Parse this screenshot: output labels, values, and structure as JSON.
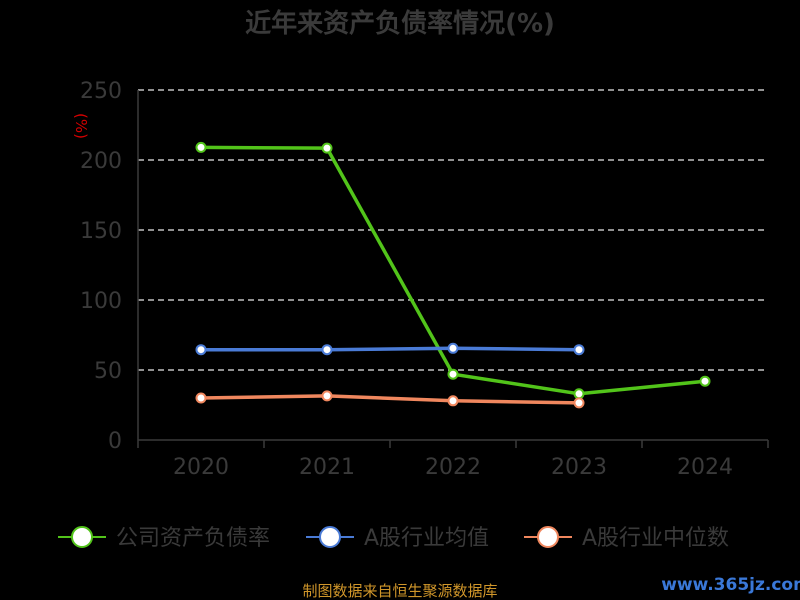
{
  "chart_data": {
    "type": "line",
    "title": "近年来资产负债率情况(%)",
    "unit_label": "(%)",
    "categories": [
      "2020",
      "2021",
      "2022",
      "2023",
      "2024"
    ],
    "ylim": [
      0,
      250
    ],
    "yticks": [
      "0",
      "50",
      "100",
      "150",
      "200",
      "250"
    ],
    "grid": true,
    "legend_position": "bottom",
    "series": [
      {
        "name": "公司资产负债率",
        "color": "#52c41a",
        "values": [
          209,
          208.5,
          47,
          33,
          42
        ]
      },
      {
        "name": "A股行业均值",
        "color": "#4a7bd6",
        "values": [
          64.5,
          64.5,
          65.5,
          64.5,
          null
        ]
      },
      {
        "name": "A股行业中位数",
        "color": "#f0875e",
        "values": [
          30,
          31.5,
          28,
          26.5,
          null
        ]
      }
    ]
  },
  "footer": {
    "source": "制图数据来自恒生聚源数据库",
    "watermark": "www.365jz.com"
  }
}
